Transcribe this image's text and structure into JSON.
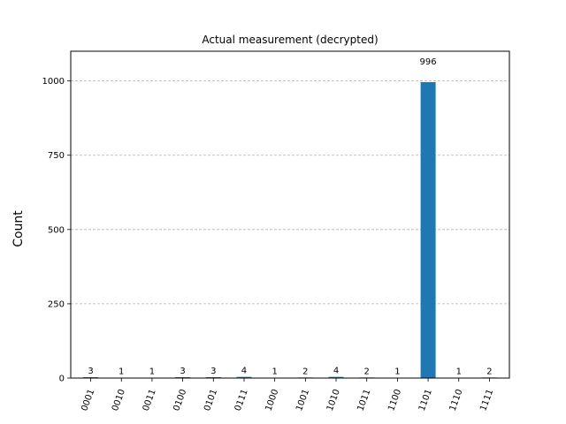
{
  "chart_data": {
    "type": "bar",
    "title": "Actual measurement (decrypted)",
    "xlabel": "",
    "ylabel": "Count",
    "categories": [
      "0001",
      "0010",
      "0011",
      "0100",
      "0101",
      "0111",
      "1000",
      "1001",
      "1010",
      "1011",
      "1100",
      "1101",
      "1110",
      "1111"
    ],
    "values": [
      3,
      1,
      1,
      3,
      3,
      4,
      1,
      2,
      4,
      2,
      1,
      996,
      1,
      2
    ],
    "ylim": [
      0,
      1100
    ],
    "yticks": [
      0,
      250,
      500,
      750,
      1000
    ],
    "grid": true,
    "bar_color": "#1f77b4",
    "grid_color": "#b0b0b0"
  }
}
